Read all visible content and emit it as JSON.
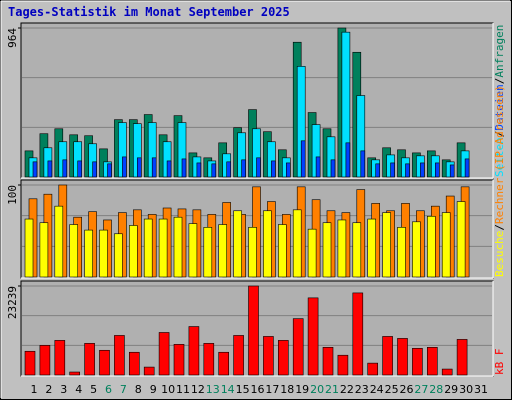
{
  "title": "Tages-Statistik im Monat September 2025",
  "chart_data": [
    {
      "type": "bar",
      "categories": [
        1,
        2,
        3,
        4,
        5,
        6,
        7,
        8,
        9,
        10,
        11,
        12,
        13,
        14,
        15,
        16,
        17,
        18,
        19,
        20,
        21,
        22,
        23,
        24,
        25,
        26,
        27,
        28,
        29,
        30,
        31
      ],
      "ylim": [
        0,
        964
      ],
      "yticks": [
        964
      ],
      "grid": true,
      "separator": "/",
      "series": [
        {
          "name": "Anfragen",
          "color": "#00805c",
          "values": [
            169,
            280,
            312,
            273,
            267,
            182,
            371,
            371,
            404,
            273,
            397,
            156,
            124,
            221,
            319,
            436,
            293,
            176,
            872,
            417,
            312,
            964,
            807,
            124,
            189,
            176,
            156,
            169,
            111,
            221,
            null
          ]
        },
        {
          "name": "Seiten",
          "color": "#00e0ff",
          "values": [
            124,
            189,
            228,
            228,
            215,
            98,
            352,
            345,
            352,
            228,
            352,
            130,
            104,
            150,
            286,
            312,
            228,
            124,
            716,
            339,
            260,
            937,
            527,
            111,
            143,
            124,
            137,
            137,
            98,
            169,
            null
          ]
        },
        {
          "name": "Dateien",
          "color": "#0040ff",
          "values": [
            98,
            104,
            111,
            104,
            98,
            85,
            130,
            124,
            124,
            104,
            117,
            91,
            85,
            98,
            111,
            124,
            104,
            91,
            234,
            130,
            111,
            221,
            169,
            85,
            91,
            85,
            91,
            91,
            78,
            117,
            null
          ]
        }
      ],
      "legend_order": [
        1,
        2,
        0
      ]
    },
    {
      "type": "bar",
      "categories": [
        1,
        2,
        3,
        4,
        5,
        6,
        7,
        8,
        9,
        10,
        11,
        12,
        13,
        14,
        15,
        16,
        17,
        18,
        19,
        20,
        21,
        22,
        23,
        24,
        25,
        26,
        27,
        28,
        29,
        30,
        31
      ],
      "ylim": [
        0,
        100
      ],
      "yticks": [
        100
      ],
      "grid": true,
      "separator": "/",
      "series": [
        {
          "name": "Rechner (IP-Adressen)",
          "color": "#ff8000",
          "values": [
            85,
            90,
            100,
            65,
            71,
            62,
            70,
            73,
            68,
            75,
            74,
            73,
            68,
            81,
            68,
            98,
            82,
            68,
            98,
            84,
            72,
            70,
            95,
            80,
            72,
            80,
            72,
            77,
            88,
            98,
            null
          ]
        },
        {
          "name": "Besuche",
          "color": "#ffff00",
          "values": [
            63,
            59,
            77,
            57,
            51,
            51,
            47,
            56,
            63,
            63,
            65,
            58,
            54,
            57,
            72,
            54,
            72,
            57,
            73,
            52,
            59,
            62,
            59,
            63,
            70,
            54,
            60,
            66,
            70,
            82,
            null
          ]
        }
      ],
      "legend_order": [
        1,
        0
      ]
    },
    {
      "type": "bar",
      "categories": [
        1,
        2,
        3,
        4,
        5,
        6,
        7,
        8,
        9,
        10,
        11,
        12,
        13,
        14,
        15,
        16,
        17,
        18,
        19,
        20,
        21,
        22,
        23,
        24,
        25,
        26,
        27,
        28,
        29,
        30,
        31
      ],
      "category_colors": [
        "#000",
        "#000",
        "#000",
        "#000",
        "#000",
        "#00805c",
        "#00805c",
        "#000",
        "#000",
        "#000",
        "#000",
        "#000",
        "#00805c",
        "#00805c",
        "#000",
        "#000",
        "#000",
        "#000",
        "#000",
        "#00805c",
        "#00805c",
        "#000",
        "#000",
        "#000",
        "#000",
        "#000",
        "#00805c",
        "#00805c",
        "#000",
        "#000",
        "#000"
      ],
      "ylim": [
        0,
        23239
      ],
      "yticks": [
        23239
      ],
      "grid": true,
      "series": [
        {
          "name": "kB F",
          "color": "#ff0000",
          "values": [
            6197,
            7746,
            9037,
            775,
            8263,
            6455,
            10329,
            5939,
            2066,
            11103,
            8004,
            12652,
            8263,
            5939,
            10329,
            23239,
            10070,
            9037,
            14718,
            20140,
            7230,
            5164,
            21431,
            3098,
            10070,
            9554,
            6972,
            7230,
            1549,
            9296,
            null
          ]
        }
      ],
      "legend_order": [
        0
      ]
    }
  ]
}
